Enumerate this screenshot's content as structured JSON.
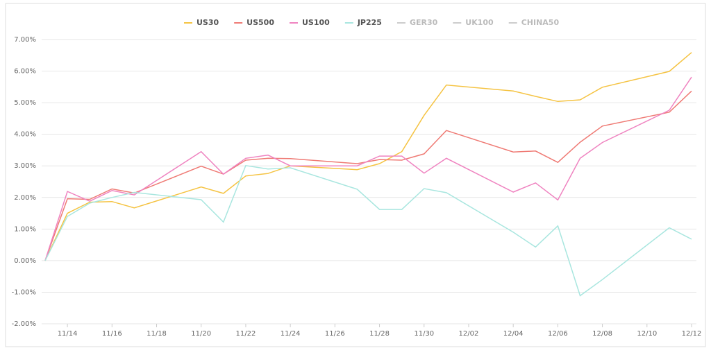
{
  "chart_data": {
    "type": "line",
    "x": [
      "11/13",
      "11/14",
      "11/15",
      "11/16",
      "11/17",
      "11/20",
      "11/21",
      "11/22",
      "11/23",
      "11/24",
      "11/27",
      "11/28",
      "11/29",
      "11/30",
      "12/01",
      "12/04",
      "12/05",
      "12/06",
      "12/07",
      "12/08",
      "12/11",
      "12/12"
    ],
    "xlim": [
      "11/13",
      "12/12"
    ],
    "xticks": [
      "11/14",
      "11/16",
      "11/18",
      "11/20",
      "11/22",
      "11/24",
      "11/26",
      "11/28",
      "11/30",
      "12/02",
      "12/04",
      "12/06",
      "12/08",
      "12/10",
      "12/12"
    ],
    "ylim": [
      -2,
      7
    ],
    "yticks": [
      {
        "value": -2,
        "label": "-2.00%"
      },
      {
        "value": -1,
        "label": "-1.00%"
      },
      {
        "value": 0,
        "label": "0.00%"
      },
      {
        "value": 1,
        "label": "1.00%"
      },
      {
        "value": 2,
        "label": "2.00%"
      },
      {
        "value": 3,
        "label": "3.00%"
      },
      {
        "value": 4,
        "label": "4.00%"
      },
      {
        "value": 5,
        "label": "5.00%"
      },
      {
        "value": 6,
        "label": "6.00%"
      },
      {
        "value": 7,
        "label": "7.00%"
      }
    ],
    "grid": true,
    "series": [
      {
        "name": "US30",
        "color": "#f5c342",
        "values": [
          0,
          1.5,
          1.85,
          1.87,
          1.67,
          2.33,
          2.13,
          2.68,
          2.76,
          3.0,
          2.88,
          3.07,
          3.45,
          4.6,
          5.56,
          5.37,
          5.2,
          5.04,
          5.09,
          5.49,
          5.99,
          6.59
        ]
      },
      {
        "name": "US500",
        "color": "#ef7a74",
        "values": [
          0,
          1.96,
          1.94,
          2.27,
          2.14,
          2.99,
          2.74,
          3.18,
          3.24,
          3.23,
          3.07,
          3.2,
          3.18,
          3.38,
          4.12,
          3.44,
          3.47,
          3.11,
          3.75,
          4.26,
          4.7,
          5.37
        ]
      },
      {
        "name": "US100",
        "color": "#ef83c0",
        "values": [
          0,
          2.19,
          1.88,
          2.22,
          2.08,
          3.45,
          2.74,
          3.24,
          3.34,
          3.0,
          3.0,
          3.31,
          3.31,
          2.77,
          3.24,
          2.17,
          2.46,
          1.92,
          3.24,
          3.74,
          4.76,
          5.81
        ]
      },
      {
        "name": "JP225",
        "color": "#a8e6df",
        "values": [
          0,
          1.4,
          1.82,
          2.0,
          2.16,
          1.93,
          1.22,
          3.01,
          2.9,
          2.94,
          2.26,
          1.62,
          1.62,
          2.28,
          2.15,
          0.9,
          0.43,
          1.1,
          -1.11,
          -0.6,
          1.04,
          0.68
        ]
      },
      {
        "name": "GER30",
        "color": "#cccccc",
        "visible": false
      },
      {
        "name": "UK100",
        "color": "#cccccc",
        "visible": false
      },
      {
        "name": "CHINA50",
        "color": "#cccccc",
        "visible": false
      }
    ]
  }
}
